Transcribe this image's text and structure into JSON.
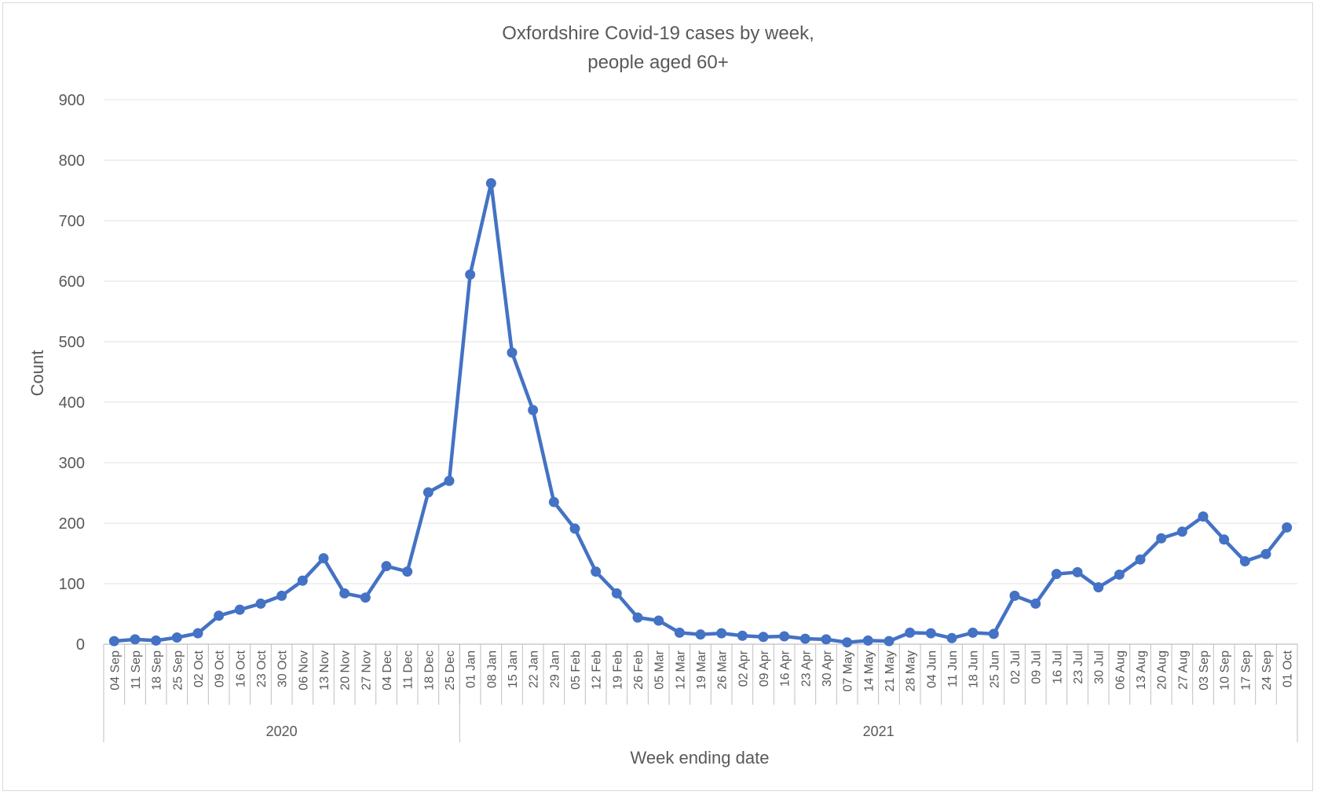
{
  "chart_data": {
    "type": "line",
    "title": "Oxfordshire Covid-19 cases by week,",
    "subtitle": "people aged 60+",
    "xlabel": "Week ending date",
    "ylabel": "Count",
    "ylim": [
      0,
      900
    ],
    "yticks": [
      0,
      100,
      200,
      300,
      400,
      500,
      600,
      700,
      800,
      900
    ],
    "grid": true,
    "legend": "none",
    "line_color": "#4472c4",
    "categories": [
      "04 Sep",
      "11 Sep",
      "18 Sep",
      "25 Sep",
      "02 Oct",
      "09 Oct",
      "16 Oct",
      "23 Oct",
      "30 Oct",
      "06 Nov",
      "13 Nov",
      "20 Nov",
      "27 Nov",
      "04 Dec",
      "11 Dec",
      "18 Dec",
      "25 Dec",
      "01 Jan",
      "08 Jan",
      "15 Jan",
      "22 Jan",
      "29 Jan",
      "05 Feb",
      "12 Feb",
      "19 Feb",
      "26 Feb",
      "05 Mar",
      "12 Mar",
      "19 Mar",
      "26 Mar",
      "02 Apr",
      "09 Apr",
      "16 Apr",
      "23 Apr",
      "30 Apr",
      "07 May",
      "14 May",
      "21 May",
      "28 May",
      "04 Jun",
      "11 Jun",
      "18 Jun",
      "25 Jun",
      "02 Jul",
      "09 Jul",
      "16 Jul",
      "23 Jul",
      "30 Jul",
      "06 Aug",
      "13 Aug",
      "20 Aug",
      "27 Aug",
      "03 Sep",
      "10 Sep",
      "17 Sep",
      "24 Sep",
      "01 Oct"
    ],
    "year_groups": [
      {
        "label": "2020",
        "count": 17
      },
      {
        "label": "2021",
        "count": 40
      }
    ],
    "values": [
      5,
      8,
      6,
      11,
      18,
      47,
      57,
      67,
      80,
      105,
      142,
      84,
      77,
      129,
      120,
      251,
      270,
      611,
      762,
      482,
      387,
      235,
      191,
      120,
      84,
      44,
      39,
      19,
      16,
      18,
      14,
      12,
      13,
      9,
      8,
      3,
      6,
      5,
      19,
      18,
      10,
      19,
      17,
      80,
      67,
      116,
      119,
      94,
      115,
      140,
      175,
      186,
      211,
      173,
      137,
      149,
      193
    ]
  }
}
